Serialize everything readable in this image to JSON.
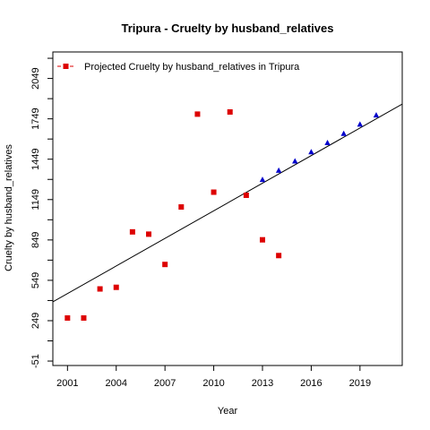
{
  "chart_data": {
    "type": "scatter",
    "title": "Tripura  -  Cruelty by husband_relatives",
    "xlabel": "Year",
    "ylabel": "Cruelty by husband_relatives",
    "xlim": [
      2000.1,
      2021.6
    ],
    "ylim": [
      -84,
      2246
    ],
    "x_ticks": [
      2001,
      2004,
      2007,
      2010,
      2013,
      2016,
      2019
    ],
    "x_tick_labels": [
      "2001",
      "2004",
      "2007",
      "2010",
      "2013",
      "2016",
      "2019"
    ],
    "y_ticks": [
      -51,
      99,
      249,
      399,
      549,
      699,
      849,
      999,
      1149,
      1299,
      1449,
      1599,
      1749,
      1899,
      2049,
      2199
    ],
    "y_tick_labels": [
      "-51",
      "",
      "249",
      "",
      "549",
      "",
      "849",
      "",
      "1149",
      "",
      "1449",
      "",
      "1749",
      "",
      "2049",
      ""
    ],
    "legend": {
      "position": "top-left",
      "label": "Projected  Cruelty by husband_relatives  in  Tripura"
    },
    "colors": {
      "observed": "#dd0000",
      "projected": "#0000cc",
      "trend": "#000000"
    },
    "series": [
      {
        "marker": "square",
        "x": [
          2001,
          2002,
          2003,
          2004,
          2005,
          2006,
          2007,
          2008,
          2009,
          2010,
          2011,
          2012,
          2013,
          2014
        ],
        "y": [
          269,
          269,
          485,
          497,
          909,
          892,
          667,
          1094,
          1784,
          1204,
          1800,
          1181,
          850,
          733
        ]
      },
      {
        "marker": "triangle",
        "x": [
          2013,
          2014,
          2015,
          2016,
          2017,
          2018,
          2019,
          2020
        ],
        "y": [
          1296,
          1364,
          1433,
          1501,
          1570,
          1638,
          1707,
          1775
        ]
      }
    ],
    "trend_line": {
      "x": [
        2000,
        2022
      ],
      "y": [
        382,
        1886
      ]
    }
  }
}
